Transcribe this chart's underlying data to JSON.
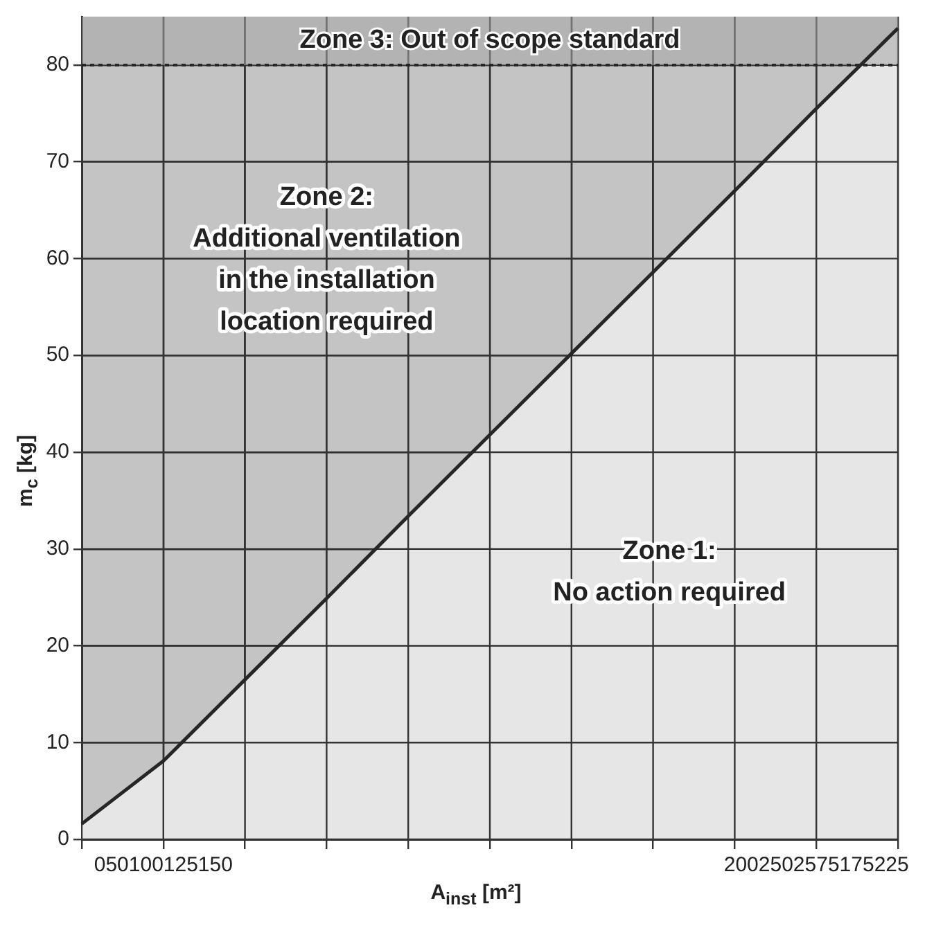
{
  "chart_data": {
    "type": "area",
    "xlabel": "A$_{inst}$ [m²]",
    "ylabel": "m$_{c}$ [kg]",
    "categories": [
      null,
      "050100125150",
      null,
      null,
      null,
      null,
      null,
      null,
      null,
      "2002502575175225",
      null
    ],
    "ylim": [
      0,
      85
    ],
    "yticks": [
      0,
      10,
      20,
      30,
      40,
      50,
      60,
      70,
      80
    ],
    "series": [
      {
        "color": "#262626",
        "values": [
          1.6,
          8.1,
          16.5,
          24.9,
          33.4,
          41.8,
          50.2,
          58.6,
          67.0,
          75.5,
          83.8
        ]
      }
    ],
    "bands": [
      {
        "axis": "y",
        "from": 80,
        "to": 85,
        "label": "Zone 3: Out of scope standard",
        "color": "#a6a6a6"
      }
    ],
    "ref_lines": [
      {
        "axis": "y",
        "value": 80,
        "line_style": "dotted",
        "color": "#262626"
      }
    ],
    "annotations": [
      "Zone 2:\nAdditional ventilation\nin the installation\nlocation required",
      "Zone 1:\nNo action required"
    ],
    "grid": true,
    "legend": false,
    "marker": "none",
    "line_style": "solid"
  }
}
